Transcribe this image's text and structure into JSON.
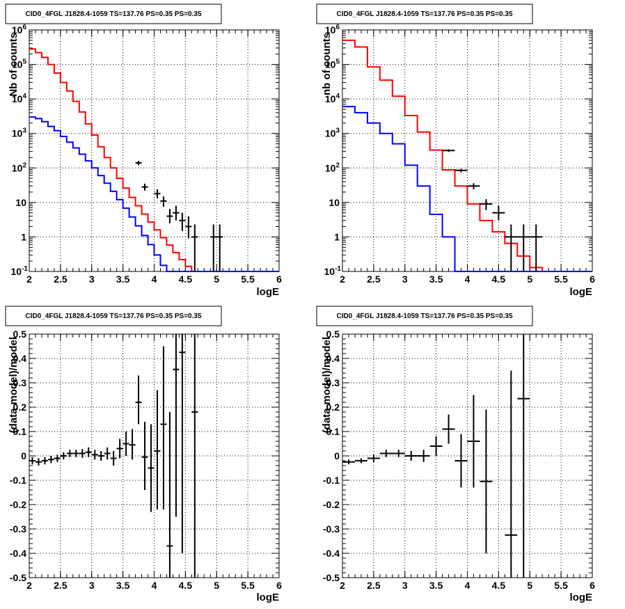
{
  "panels": [
    {
      "id": "top-left",
      "title": "CID0_4FGL J1828.4-1059 TS=137.76 PS=0.35 PS=0.35",
      "xlabel": "logE",
      "ylabel": "Nb of counts",
      "log_y": true,
      "xlim": [
        2,
        6
      ],
      "ylim": [
        0.1,
        1000000
      ],
      "x_ticks": [
        "2",
        "2.5",
        "3",
        "3.5",
        "4",
        "4.5",
        "5",
        "5.5",
        "6"
      ],
      "y_ticks": [
        "10^-1",
        "1",
        "10",
        "10^2",
        "10^3",
        "10^4",
        "10^5",
        "10^6"
      ],
      "kind": "counts"
    },
    {
      "id": "top-right",
      "title": "CID0_4FGL J1828.4-1059 TS=137.76 PS=0.35 PS=0.35",
      "xlabel": "logE",
      "ylabel": "nb of counts",
      "log_y": true,
      "xlim": [
        2,
        6
      ],
      "ylim": [
        0.1,
        1000000
      ],
      "x_ticks": [
        "2",
        "2.5",
        "3",
        "3.5",
        "4",
        "4.5",
        "5",
        "5.5",
        "6"
      ],
      "y_ticks": [
        "10^-1",
        "1",
        "10",
        "10^2",
        "10^3",
        "10^4",
        "10^5",
        "10^6"
      ],
      "kind": "counts"
    },
    {
      "id": "bottom-left",
      "title": "CID0_4FGL J1828.4-1059 TS=137.76 PS=0.35 PS=0.35",
      "xlabel": "logE",
      "ylabel": "(data-model)/model",
      "log_y": false,
      "xlim": [
        2,
        6
      ],
      "ylim": [
        -0.5,
        0.5
      ],
      "x_ticks": [
        "2",
        "2.5",
        "3",
        "3.5",
        "4",
        "4.5",
        "5",
        "5.5",
        "6"
      ],
      "y_ticks": [
        "-0.5",
        "-0.4",
        "-0.3",
        "-0.2",
        "-0.1",
        "0",
        "0.1",
        "0.2",
        "0.3",
        "0.4",
        "0.5"
      ],
      "kind": "residual"
    },
    {
      "id": "bottom-right",
      "title": "CID0_4FGL J1828.4-1059 TS=137.76 PS=0.35 PS=0.35",
      "xlabel": "logE",
      "ylabel": "(data-model)/model",
      "log_y": false,
      "xlim": [
        2,
        6
      ],
      "ylim": [
        -0.5,
        0.5
      ],
      "x_ticks": [
        "2",
        "2.5",
        "3",
        "3.5",
        "4",
        "4.5",
        "5",
        "5.5",
        "6"
      ],
      "y_ticks": [
        "-0.5",
        "-0.4",
        "-0.3",
        "-0.2",
        "-0.1",
        "0",
        "0.1",
        "0.2",
        "0.3",
        "0.4",
        "0.5"
      ],
      "kind": "residual"
    }
  ],
  "chart_data": [
    {
      "type": "line",
      "log_y": true,
      "xlim": [
        2,
        6
      ],
      "ylim": [
        0.1,
        1000000
      ],
      "bin_width": 0.1,
      "series": [
        {
          "color": "#ff0000",
          "edges_start": 2.0,
          "values": [
            280000,
            220000,
            160000,
            100000,
            56000,
            30000,
            17000,
            8500,
            4200,
            1900,
            900,
            410,
            200,
            100,
            50,
            26,
            14,
            8,
            4.6,
            2.7,
            1.6,
            0.95,
            0.58,
            0.35,
            0.22,
            0.14,
            0.1,
            0.1,
            0.1,
            0.1,
            0.1,
            0.1,
            0.1,
            0.1,
            0.1,
            0.1,
            0.1,
            0.1,
            0.1,
            0.1
          ]
        },
        {
          "color": "#0000ff",
          "edges_start": 2.0,
          "values": [
            3000,
            2700,
            2200,
            1600,
            1200,
            820,
            560,
            380,
            250,
            160,
            100,
            60,
            36,
            21,
            12,
            6.8,
            3.8,
            2.1,
            1.1,
            0.6,
            0.3,
            0.15,
            0.1,
            0.1,
            0.1,
            0.1,
            0.1,
            0.1,
            0.1,
            0.1,
            0.1,
            0.1,
            0.1,
            0.1,
            0.1,
            0.1,
            0.1,
            0.1,
            0.1,
            0.1
          ]
        }
      ],
      "points": [
        {
          "x": 3.75,
          "y": 140,
          "ylo": 120,
          "yhi": 160
        },
        {
          "x": 3.85,
          "y": 28,
          "ylo": 22,
          "yhi": 35
        },
        {
          "x": 4.05,
          "y": 18,
          "ylo": 13,
          "yhi": 24
        },
        {
          "x": 4.15,
          "y": 11,
          "ylo": 7.5,
          "yhi": 15
        },
        {
          "x": 4.25,
          "y": 4,
          "ylo": 2.5,
          "yhi": 6.5
        },
        {
          "x": 4.35,
          "y": 5,
          "ylo": 3,
          "yhi": 8
        },
        {
          "x": 4.45,
          "y": 3,
          "ylo": 1.5,
          "yhi": 5
        },
        {
          "x": 4.55,
          "y": 2,
          "ylo": 0.9,
          "yhi": 4
        },
        {
          "x": 4.65,
          "y": 1,
          "ylo": 0.1,
          "yhi": 2.3
        },
        {
          "x": 4.95,
          "y": 1,
          "ylo": 0.1,
          "yhi": 2.3
        },
        {
          "x": 5.05,
          "y": 1,
          "ylo": 0.1,
          "yhi": 2.3
        }
      ]
    },
    {
      "type": "line",
      "log_y": true,
      "xlim": [
        2,
        6
      ],
      "ylim": [
        0.1,
        1000000
      ],
      "bin_width": 0.2,
      "series": [
        {
          "color": "#ff0000",
          "edges_start": 2.0,
          "values": [
            500000,
            320000,
            85000,
            35000,
            12000,
            3300,
            1100,
            330,
            88,
            30,
            9,
            3,
            1.4,
            0.65,
            0.28,
            0.13,
            0.1,
            0.1,
            0.1,
            0.1
          ]
        },
        {
          "color": "#0000ff",
          "edges_start": 2.0,
          "values": [
            6000,
            4000,
            2000,
            1000,
            500,
            120,
            30,
            4.5,
            1,
            0.1,
            0.1,
            0.1,
            0.1,
            0.1,
            0.1,
            0.1,
            0.1,
            0.1,
            0.1,
            0.1
          ]
        }
      ],
      "points": [
        {
          "x": 3.7,
          "y": 320,
          "ylo": 290,
          "yhi": 350
        },
        {
          "x": 3.9,
          "y": 85,
          "ylo": 75,
          "yhi": 95
        },
        {
          "x": 4.1,
          "y": 30,
          "ylo": 24,
          "yhi": 36
        },
        {
          "x": 4.3,
          "y": 9,
          "ylo": 6,
          "yhi": 12.5
        },
        {
          "x": 4.5,
          "y": 5,
          "ylo": 3,
          "yhi": 8
        },
        {
          "x": 4.7,
          "y": 1,
          "ylo": 0.1,
          "yhi": 2.3
        },
        {
          "x": 4.9,
          "y": 1,
          "ylo": 0.1,
          "yhi": 2.3
        },
        {
          "x": 5.1,
          "y": 1,
          "ylo": 0.1,
          "yhi": 2.3
        }
      ]
    },
    {
      "type": "scatter",
      "xlim": [
        2,
        6
      ],
      "ylim": [
        -0.5,
        0.5
      ],
      "bin_width": 0.1,
      "points": [
        {
          "x": 2.05,
          "y": -0.02,
          "ylo": -0.035,
          "yhi": -0.005
        },
        {
          "x": 2.15,
          "y": -0.025,
          "ylo": -0.04,
          "yhi": -0.01
        },
        {
          "x": 2.25,
          "y": -0.02,
          "ylo": -0.035,
          "yhi": -0.005
        },
        {
          "x": 2.35,
          "y": -0.015,
          "ylo": -0.03,
          "yhi": 0.0
        },
        {
          "x": 2.45,
          "y": -0.01,
          "ylo": -0.025,
          "yhi": 0.005
        },
        {
          "x": 2.55,
          "y": 0.0,
          "ylo": -0.015,
          "yhi": 0.015
        },
        {
          "x": 2.65,
          "y": 0.01,
          "ylo": -0.005,
          "yhi": 0.025
        },
        {
          "x": 2.75,
          "y": 0.01,
          "ylo": -0.005,
          "yhi": 0.025
        },
        {
          "x": 2.85,
          "y": 0.01,
          "ylo": -0.008,
          "yhi": 0.028
        },
        {
          "x": 2.95,
          "y": 0.015,
          "ylo": -0.005,
          "yhi": 0.035
        },
        {
          "x": 3.05,
          "y": 0.005,
          "ylo": -0.015,
          "yhi": 0.025
        },
        {
          "x": 3.15,
          "y": 0.0,
          "ylo": -0.02,
          "yhi": 0.02
        },
        {
          "x": 3.25,
          "y": 0.01,
          "ylo": -0.015,
          "yhi": 0.035
        },
        {
          "x": 3.35,
          "y": -0.01,
          "ylo": -0.04,
          "yhi": 0.02
        },
        {
          "x": 3.45,
          "y": 0.03,
          "ylo": -0.01,
          "yhi": 0.07
        },
        {
          "x": 3.55,
          "y": 0.05,
          "ylo": 0.0,
          "yhi": 0.1
        },
        {
          "x": 3.65,
          "y": 0.045,
          "ylo": -0.015,
          "yhi": 0.11
        },
        {
          "x": 3.75,
          "y": 0.22,
          "ylo": 0.13,
          "yhi": 0.33
        },
        {
          "x": 3.85,
          "y": -0.005,
          "ylo": -0.14,
          "yhi": 0.14
        },
        {
          "x": 3.95,
          "y": -0.05,
          "ylo": -0.23,
          "yhi": 0.13
        },
        {
          "x": 4.05,
          "y": 0.02,
          "ylo": -0.22,
          "yhi": 0.27
        },
        {
          "x": 4.15,
          "y": 0.13,
          "ylo": -0.22,
          "yhi": 0.45
        },
        {
          "x": 4.25,
          "y": -0.37,
          "ylo": -0.5,
          "yhi": 0.18
        },
        {
          "x": 4.35,
          "y": 0.355,
          "ylo": -0.25,
          "yhi": 0.5
        },
        {
          "x": 4.45,
          "y": 0.425,
          "ylo": -0.4,
          "yhi": 0.5
        },
        {
          "x": 4.65,
          "y": 0.18,
          "ylo": -0.5,
          "yhi": 0.5
        }
      ]
    },
    {
      "type": "scatter",
      "xlim": [
        2,
        6
      ],
      "ylim": [
        -0.5,
        0.5
      ],
      "bin_width": 0.2,
      "points": [
        {
          "x": 2.1,
          "y": -0.025,
          "ylo": -0.035,
          "yhi": -0.015
        },
        {
          "x": 2.3,
          "y": -0.02,
          "ylo": -0.03,
          "yhi": -0.01
        },
        {
          "x": 2.5,
          "y": -0.01,
          "ylo": -0.025,
          "yhi": 0.005
        },
        {
          "x": 2.7,
          "y": 0.01,
          "ylo": -0.005,
          "yhi": 0.025
        },
        {
          "x": 2.9,
          "y": 0.01,
          "ylo": -0.005,
          "yhi": 0.025
        },
        {
          "x": 3.1,
          "y": 0.0,
          "ylo": -0.02,
          "yhi": 0.02
        },
        {
          "x": 3.3,
          "y": 0.0,
          "ylo": -0.025,
          "yhi": 0.025
        },
        {
          "x": 3.5,
          "y": 0.04,
          "ylo": 0.0,
          "yhi": 0.08
        },
        {
          "x": 3.7,
          "y": 0.11,
          "ylo": 0.05,
          "yhi": 0.17
        },
        {
          "x": 3.9,
          "y": -0.02,
          "ylo": -0.13,
          "yhi": 0.09
        },
        {
          "x": 4.1,
          "y": 0.06,
          "ylo": -0.13,
          "yhi": 0.25
        },
        {
          "x": 4.3,
          "y": -0.105,
          "ylo": -0.4,
          "yhi": 0.19
        },
        {
          "x": 4.7,
          "y": -0.325,
          "ylo": -0.5,
          "yhi": 0.35
        },
        {
          "x": 4.9,
          "y": 0.235,
          "ylo": -0.5,
          "yhi": 0.5
        }
      ]
    }
  ]
}
